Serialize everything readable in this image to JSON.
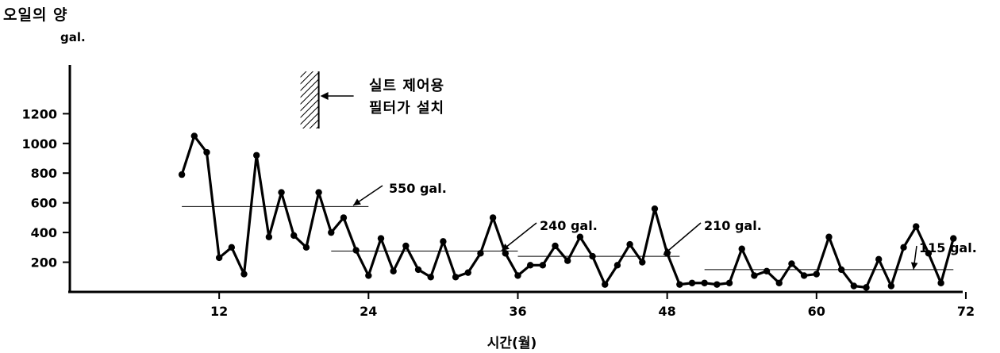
{
  "chart_data": {
    "type": "line",
    "ylabel": "오일의 양",
    "yunit": "gal.",
    "xlabel": "시간(월)",
    "xlim": [
      0,
      75
    ],
    "ylim": [
      0,
      1500
    ],
    "xticks": [
      12,
      24,
      36,
      48,
      60,
      72
    ],
    "yticks": [
      200,
      400,
      600,
      800,
      1000,
      1200
    ],
    "annotation": {
      "x": 20,
      "lines": [
        "실트 제어용",
        "필터가 설치"
      ]
    },
    "averages": [
      {
        "label": "550 gal.",
        "value": 575,
        "x_start": 9,
        "x_end": 24
      },
      {
        "label": "240 gal.",
        "value": 275,
        "x_start": 21,
        "x_end": 36
      },
      {
        "label": "210 gal.",
        "value": 240,
        "x_start": 36,
        "x_end": 49
      },
      {
        "label": "115 gal.",
        "value": 150,
        "x_start": 51,
        "x_end": 71
      }
    ],
    "series": [
      {
        "x": [
          9,
          10,
          11,
          12,
          13,
          14,
          15,
          16,
          17,
          18,
          19,
          20,
          21,
          22,
          23,
          24,
          25,
          26,
          27,
          28,
          29,
          30,
          31,
          32,
          33,
          34,
          35,
          36,
          37,
          38,
          39,
          40,
          41,
          42,
          43,
          44,
          45,
          46,
          47,
          48,
          49,
          50,
          51,
          52,
          53,
          54,
          55,
          56,
          57,
          58,
          59,
          60,
          61,
          62,
          63,
          64,
          65,
          66,
          67,
          68,
          69,
          70,
          71
        ],
        "y": [
          790,
          1050,
          940,
          230,
          300,
          120,
          920,
          370,
          670,
          380,
          300,
          670,
          400,
          500,
          280,
          110,
          360,
          140,
          310,
          150,
          100,
          340,
          100,
          130,
          260,
          500,
          260,
          110,
          180,
          180,
          310,
          210,
          370,
          240,
          50,
          180,
          320,
          200,
          560,
          260,
          50,
          60,
          60,
          50,
          60,
          290,
          110,
          140,
          60,
          190,
          110,
          120,
          370,
          150,
          40,
          30,
          220,
          40,
          300,
          440,
          260,
          60,
          360
        ]
      }
    ]
  }
}
